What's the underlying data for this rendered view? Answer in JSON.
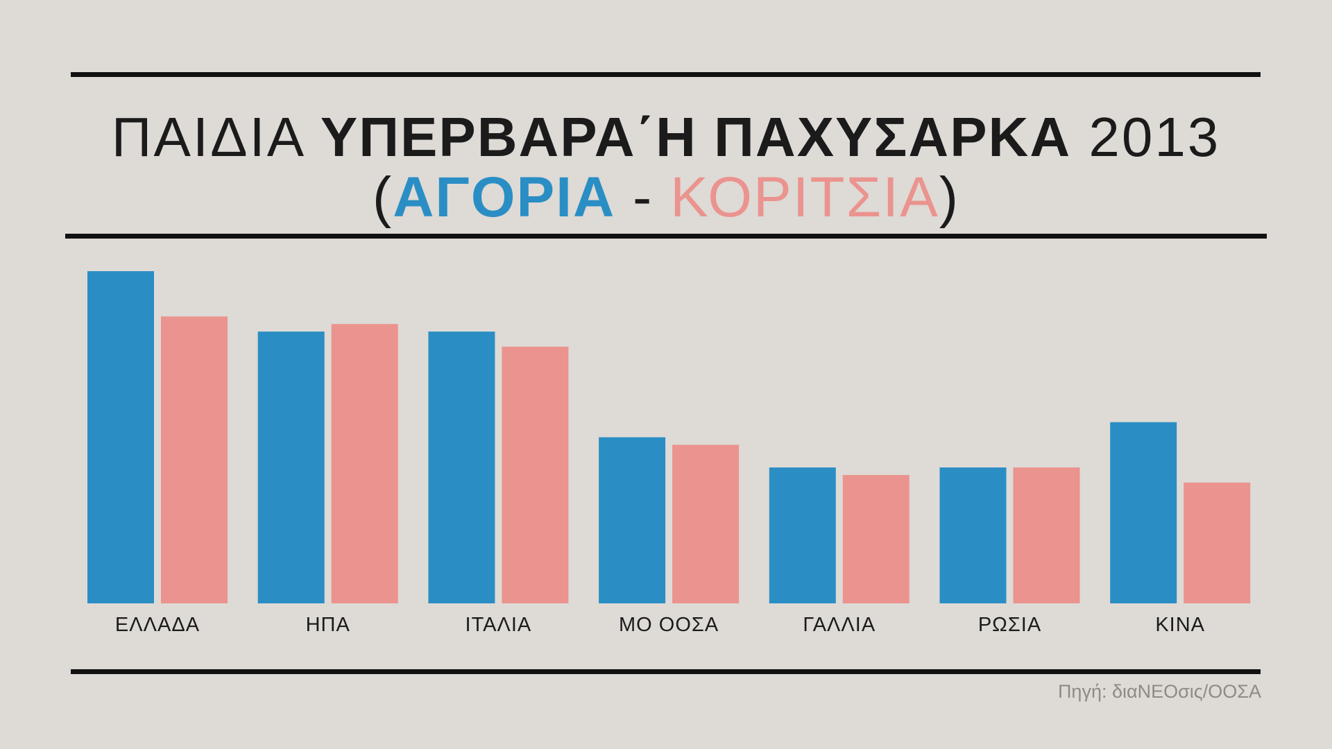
{
  "title": {
    "part1": "ΠΑΙΔΙΑ",
    "part2": "ΥΠΕΡΒΑΡΑ΄Η ΠΑΧΥΣΑΡΚΑ",
    "part3": "2013",
    "open_paren": "(",
    "boys": "ΑΓΟΡΙΑ",
    "separator": " - ",
    "girls": "ΚΟΡΙΤΣΙΑ",
    "close_paren": ")"
  },
  "colors": {
    "background": "#dedad6",
    "boys": "#2a8ec4",
    "girls": "#eb938e",
    "rules": "#111111",
    "text": "#1b1b1b",
    "source": "#8f8a86"
  },
  "chart_data": {
    "type": "bar",
    "categories": [
      "ΕΛΛΑΔΑ",
      "ΗΠΑ",
      "ΙΤΑΛΙΑ",
      "ΜΟ ΟΟΣΑ",
      "ΓΑΛΛΙΑ",
      "ΡΩΣΙΑ",
      "ΚΙΝΑ"
    ],
    "series": [
      {
        "name": "ΑΓΟΡΙΑ",
        "color": "#2a8ec4",
        "values": [
          44,
          36,
          36,
          22,
          18,
          18,
          24
        ]
      },
      {
        "name": "ΚΟΡΙΤΣΙΑ",
        "color": "#eb938e",
        "values": [
          38,
          37,
          34,
          21,
          17,
          18,
          16
        ]
      }
    ],
    "ylim": [
      0,
      44
    ],
    "grid": false,
    "legend": "title",
    "xlabel": "",
    "ylabel": ""
  },
  "source": "Πηγή: διαΝΕΟσις/ΟΟΣΑ"
}
